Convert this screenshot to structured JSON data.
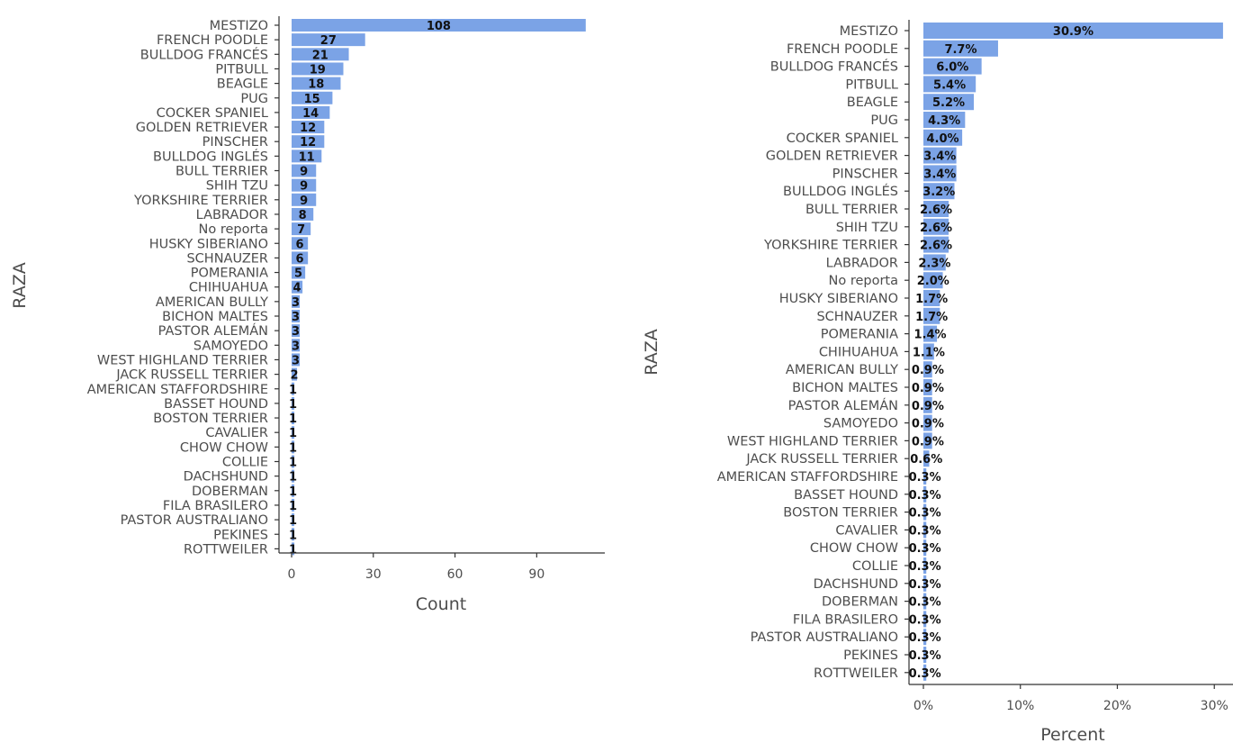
{
  "chart_data": [
    {
      "type": "bar",
      "orientation": "horizontal",
      "xlabel": "Count",
      "ylabel": "RAZA",
      "xlim": [
        0,
        115
      ],
      "xticks": [
        0,
        30,
        60,
        90
      ],
      "xtick_labels": [
        "0",
        "30",
        "60",
        "90"
      ],
      "bar_color": "#7ba3e6",
      "grid": false,
      "categories": [
        "MESTIZO",
        "FRENCH POODLE",
        "BULLDOG FRANCÉS",
        "PITBULL",
        "BEAGLE",
        "PUG",
        "COCKER SPANIEL",
        "GOLDEN RETRIEVER",
        "PINSCHER",
        "BULLDOG INGLÉS",
        "BULL TERRIER",
        "SHIH TZU",
        "YORKSHIRE TERRIER",
        "LABRADOR",
        "No reporta",
        "HUSKY SIBERIANO",
        "SCHNAUZER",
        "POMERANIA",
        "CHIHUAHUA",
        "AMERICAN BULLY",
        "BICHON MALTES",
        "PASTOR ALEMÁN",
        "SAMOYEDO",
        "WEST HIGHLAND TERRIER",
        "JACK RUSSELL TERRIER",
        "AMERICAN STAFFORDSHIRE",
        "BASSET HOUND",
        "BOSTON TERRIER",
        "CAVALIER",
        "CHOW CHOW",
        "COLLIE",
        "DACHSHUND",
        "DOBERMAN",
        "FILA BRASILERO",
        "PASTOR AUSTRALIANO",
        "PEKINES",
        "ROTTWEILER"
      ],
      "values": [
        108,
        27,
        21,
        19,
        18,
        15,
        14,
        12,
        12,
        11,
        9,
        9,
        9,
        8,
        7,
        6,
        6,
        5,
        4,
        3,
        3,
        3,
        3,
        3,
        2,
        1,
        1,
        1,
        1,
        1,
        1,
        1,
        1,
        1,
        1,
        1,
        1
      ],
      "data_labels": [
        "108",
        "27",
        "21",
        "19",
        "18",
        "15",
        "14",
        "12",
        "12",
        "11",
        "9",
        "9",
        "9",
        "8",
        "7",
        "6",
        "6",
        "5",
        "4",
        "3",
        "3",
        "3",
        "3",
        "3",
        "2",
        "1",
        "1",
        "1",
        "1",
        "1",
        "1",
        "1",
        "1",
        "1",
        "1",
        "1",
        "1"
      ]
    },
    {
      "type": "bar",
      "orientation": "horizontal",
      "xlabel": "Percent",
      "ylabel": "RAZA",
      "xlim": [
        0,
        0.31
      ],
      "xticks": [
        0,
        0.1,
        0.2,
        0.3
      ],
      "xtick_labels": [
        "0%",
        "10%",
        "20%",
        "30%"
      ],
      "bar_color": "#7ba3e6",
      "grid": false,
      "categories": [
        "MESTIZO",
        "FRENCH POODLE",
        "BULLDOG FRANCÉS",
        "PITBULL",
        "BEAGLE",
        "PUG",
        "COCKER SPANIEL",
        "GOLDEN RETRIEVER",
        "PINSCHER",
        "BULLDOG INGLÉS",
        "BULL TERRIER",
        "SHIH TZU",
        "YORKSHIRE TERRIER",
        "LABRADOR",
        "No reporta",
        "HUSKY SIBERIANO",
        "SCHNAUZER",
        "POMERANIA",
        "CHIHUAHUA",
        "AMERICAN BULLY",
        "BICHON MALTES",
        "PASTOR ALEMÁN",
        "SAMOYEDO",
        "WEST HIGHLAND TERRIER",
        "JACK RUSSELL TERRIER",
        "AMERICAN STAFFORDSHIRE",
        "BASSET HOUND",
        "BOSTON TERRIER",
        "CAVALIER",
        "CHOW CHOW",
        "COLLIE",
        "DACHSHUND",
        "DOBERMAN",
        "FILA BRASILERO",
        "PASTOR AUSTRALIANO",
        "PEKINES",
        "ROTTWEILER"
      ],
      "values": [
        0.309,
        0.077,
        0.06,
        0.054,
        0.052,
        0.043,
        0.04,
        0.034,
        0.034,
        0.032,
        0.026,
        0.026,
        0.026,
        0.023,
        0.02,
        0.017,
        0.017,
        0.014,
        0.011,
        0.009,
        0.009,
        0.009,
        0.009,
        0.009,
        0.006,
        0.003,
        0.003,
        0.003,
        0.003,
        0.003,
        0.003,
        0.003,
        0.003,
        0.003,
        0.003,
        0.003,
        0.003
      ],
      "data_labels": [
        "30.9%",
        "7.7%",
        "6.0%",
        "5.4%",
        "5.2%",
        "4.3%",
        "4.0%",
        "3.4%",
        "3.4%",
        "3.2%",
        "2.6%",
        "2.6%",
        "2.6%",
        "2.3%",
        "2.0%",
        "1.7%",
        "1.7%",
        "1.4%",
        "1.1%",
        "0.9%",
        "0.9%",
        "0.9%",
        "0.9%",
        "0.9%",
        "0.6%",
        "0.3%",
        "0.3%",
        "0.3%",
        "0.3%",
        "0.3%",
        "0.3%",
        "0.3%",
        "0.3%",
        "0.3%",
        "0.3%",
        "0.3%",
        "0.3%"
      ]
    }
  ]
}
